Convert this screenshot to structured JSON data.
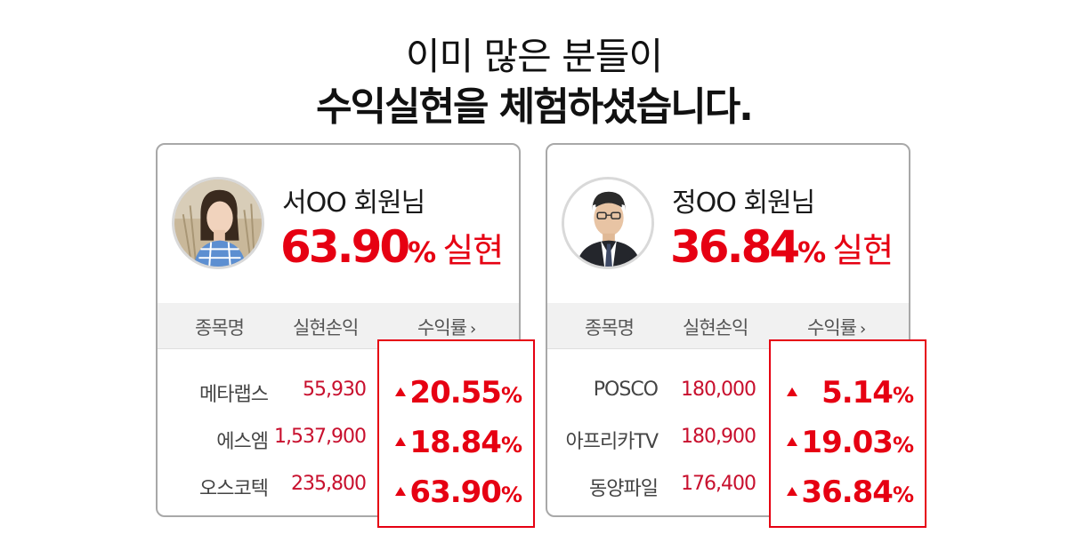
{
  "headline": {
    "line1": "이미 많은 분들이",
    "line2": "수익실현을 체험하셨습니다."
  },
  "cards": [
    {
      "member": "서OO 회원님",
      "rate": "63.90",
      "rate_pct": "%",
      "rate_suffix": "실현",
      "avatar_icon": "avatar-woman-icon",
      "table": {
        "headers": [
          "종목명",
          "실현손익",
          "수익률"
        ],
        "rows": [
          {
            "name": "메타랩스",
            "profit": "55,930",
            "return": "20.55",
            "pct": "%"
          },
          {
            "name": "에스엠",
            "profit": "1,537,900",
            "return": "18.84",
            "pct": "%"
          },
          {
            "name": "오스코텍",
            "profit": "235,800",
            "return": "63.90",
            "pct": "%"
          }
        ]
      }
    },
    {
      "member": "정OO 회원님",
      "rate": "36.84",
      "rate_pct": "%",
      "rate_suffix": "실현",
      "avatar_icon": "avatar-man-icon",
      "table": {
        "headers": [
          "종목명",
          "실현손익",
          "수익률"
        ],
        "rows": [
          {
            "name": "POSCO",
            "profit": "180,000",
            "return": "5.14",
            "pct": "%"
          },
          {
            "name": "아프리카TV",
            "profit": "180,900",
            "return": "19.03",
            "pct": "%"
          },
          {
            "name": "동양파일",
            "profit": "176,400",
            "return": "36.84",
            "pct": "%"
          }
        ]
      }
    }
  ],
  "colors": {
    "accent": "#e60012",
    "profit_text": "#c8102e",
    "border": "#a8a8a8",
    "header_bg": "#f1f1f1"
  }
}
